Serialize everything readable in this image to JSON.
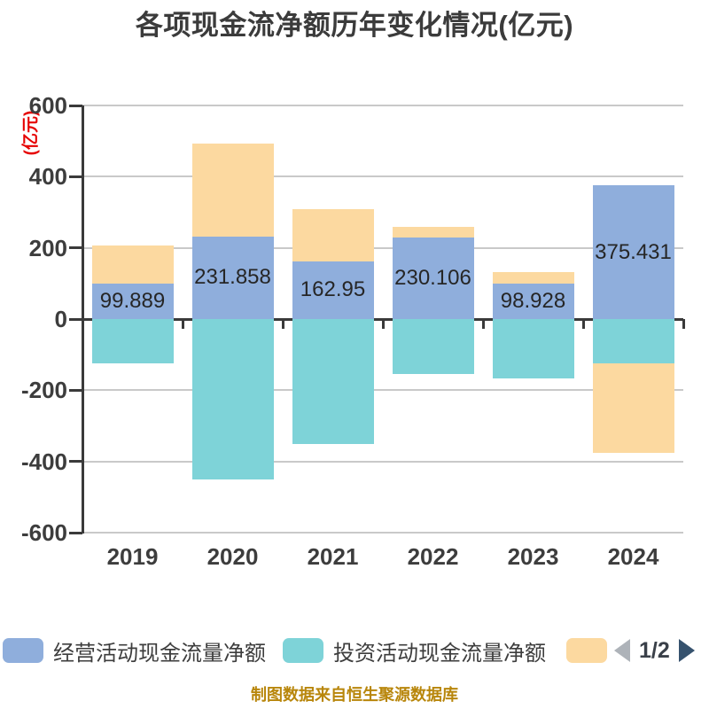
{
  "title": "各项现金流净额历年变化情况(亿元)",
  "y_axis": {
    "unit_label": "(亿元)",
    "unit_color": "#e60000"
  },
  "legend": {
    "items": [
      {
        "label": "经营活动现金流量净额",
        "color": "#8FAEDC"
      },
      {
        "label": "投资活动现金流量净额",
        "color": "#7ED3D8"
      },
      {
        "label": "",
        "color": "#FCD9A0"
      }
    ],
    "pagination": {
      "label": "1/2",
      "prev_color": "#AEB3B9",
      "next_color": "#36526E",
      "text_color": "#3A4049"
    }
  },
  "caption": {
    "text": "制图数据来自恒生聚源数据库",
    "color": "#B8860B"
  },
  "chart_data": {
    "type": "bar",
    "stacked": true,
    "title": "各项现金流净额历年变化情况(亿元)",
    "categories": [
      "2019",
      "2020",
      "2021",
      "2022",
      "2023",
      "2024"
    ],
    "series": [
      {
        "name": "经营活动现金流量净额",
        "color": "#8FAEDC",
        "data_labels": true,
        "values": [
          99.889,
          231.858,
          162.95,
          230.106,
          98.928,
          375.431
        ]
      },
      {
        "name": "投资活动现金流量净额",
        "color": "#7ED3D8",
        "values": [
          -125,
          -450,
          -350,
          -154,
          -167,
          -124
        ]
      },
      {
        "name": "",
        "color": "#FCD9A0",
        "values": [
          107,
          261,
          146,
          28,
          33,
          -252
        ]
      }
    ],
    "ylim": [
      -600,
      600
    ],
    "y_ticks": [
      600,
      400,
      200,
      0,
      -200,
      -400,
      -600
    ],
    "y_unit": "亿元",
    "grid": true,
    "legend_position": "bottom",
    "value_label_color": "#262626"
  }
}
